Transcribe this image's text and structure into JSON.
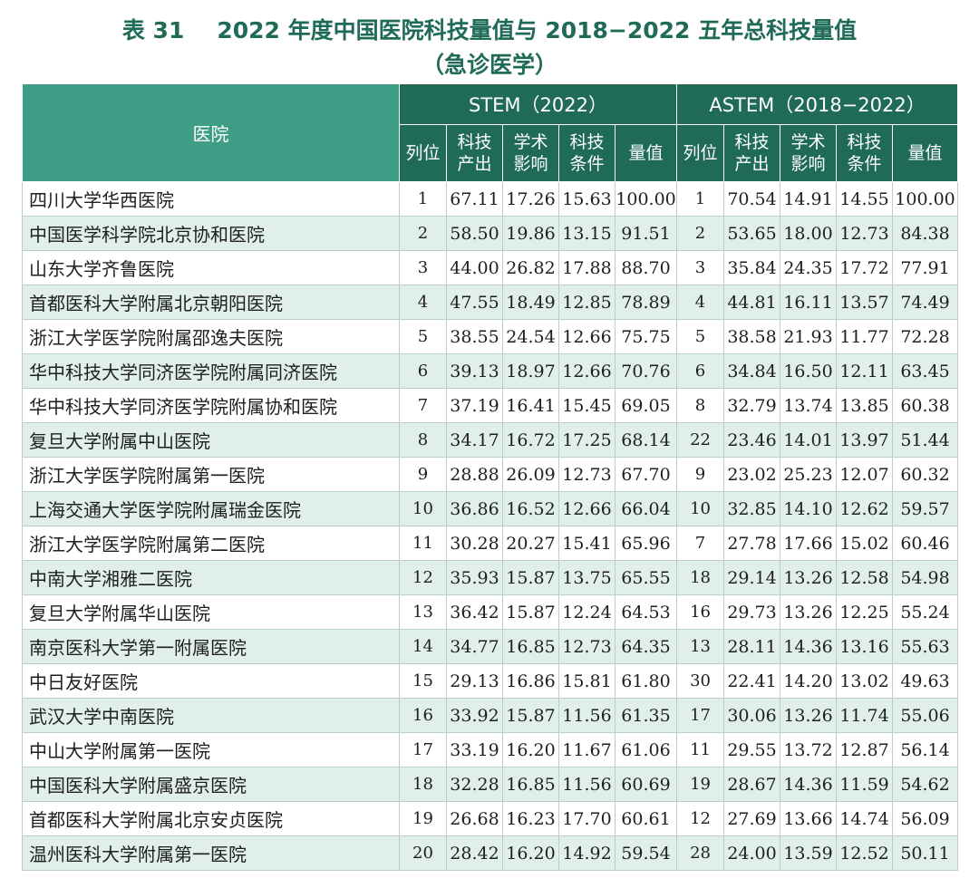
{
  "title": {
    "number": "表 31",
    "text": "2022 年度中国医院科技量值与 2018−2022 五年总科技量值",
    "subtitle": "（急诊医学）"
  },
  "table": {
    "hospital_header": "医院",
    "groups": [
      {
        "label": "STEM（2022）"
      },
      {
        "label": "ASTEM（2018−2022）"
      }
    ],
    "subheaders": [
      {
        "line1": "列位",
        "line2": ""
      },
      {
        "line1": "科技",
        "line2": "产出"
      },
      {
        "line1": "学术",
        "line2": "影响"
      },
      {
        "line1": "科技",
        "line2": "条件"
      },
      {
        "line1": "量值",
        "line2": ""
      },
      {
        "line1": "列位",
        "line2": ""
      },
      {
        "line1": "科技",
        "line2": "产出"
      },
      {
        "line1": "学术",
        "line2": "影响"
      },
      {
        "line1": "科技",
        "line2": "条件"
      },
      {
        "line1": "量值",
        "line2": ""
      }
    ],
    "rows": [
      {
        "name": "四川大学华西医院",
        "cells": [
          "1",
          "67.11",
          "17.26",
          "15.63",
          "100.00",
          "1",
          "70.54",
          "14.91",
          "14.55",
          "100.00"
        ]
      },
      {
        "name": "中国医学科学院北京协和医院",
        "cells": [
          "2",
          "58.50",
          "19.86",
          "13.15",
          "91.51",
          "2",
          "53.65",
          "18.00",
          "12.73",
          "84.38"
        ]
      },
      {
        "name": "山东大学齐鲁医院",
        "cells": [
          "3",
          "44.00",
          "26.82",
          "17.88",
          "88.70",
          "3",
          "35.84",
          "24.35",
          "17.72",
          "77.91"
        ]
      },
      {
        "name": "首都医科大学附属北京朝阳医院",
        "cells": [
          "4",
          "47.55",
          "18.49",
          "12.85",
          "78.89",
          "4",
          "44.81",
          "16.11",
          "13.57",
          "74.49"
        ]
      },
      {
        "name": "浙江大学医学院附属邵逸夫医院",
        "cells": [
          "5",
          "38.55",
          "24.54",
          "12.66",
          "75.75",
          "5",
          "38.58",
          "21.93",
          "11.77",
          "72.28"
        ]
      },
      {
        "name": "华中科技大学同济医学院附属同济医院",
        "cells": [
          "6",
          "39.13",
          "18.97",
          "12.66",
          "70.76",
          "6",
          "34.84",
          "16.50",
          "12.11",
          "63.45"
        ]
      },
      {
        "name": "华中科技大学同济医学院附属协和医院",
        "cells": [
          "7",
          "37.19",
          "16.41",
          "15.45",
          "69.05",
          "8",
          "32.79",
          "13.74",
          "13.85",
          "60.38"
        ]
      },
      {
        "name": "复旦大学附属中山医院",
        "cells": [
          "8",
          "34.17",
          "16.72",
          "17.25",
          "68.14",
          "22",
          "23.46",
          "14.01",
          "13.97",
          "51.44"
        ]
      },
      {
        "name": "浙江大学医学院附属第一医院",
        "cells": [
          "9",
          "28.88",
          "26.09",
          "12.73",
          "67.70",
          "9",
          "23.02",
          "25.23",
          "12.07",
          "60.32"
        ]
      },
      {
        "name": "上海交通大学医学院附属瑞金医院",
        "cells": [
          "10",
          "36.86",
          "16.52",
          "12.66",
          "66.04",
          "10",
          "32.85",
          "14.10",
          "12.62",
          "59.57"
        ]
      },
      {
        "name": "浙江大学医学院附属第二医院",
        "cells": [
          "11",
          "30.28",
          "20.27",
          "15.41",
          "65.96",
          "7",
          "27.78",
          "17.66",
          "15.02",
          "60.46"
        ]
      },
      {
        "name": "中南大学湘雅二医院",
        "cells": [
          "12",
          "35.93",
          "15.87",
          "13.75",
          "65.55",
          "18",
          "29.14",
          "13.26",
          "12.58",
          "54.98"
        ]
      },
      {
        "name": "复旦大学附属华山医院",
        "cells": [
          "13",
          "36.42",
          "15.87",
          "12.24",
          "64.53",
          "16",
          "29.73",
          "13.26",
          "12.25",
          "55.24"
        ]
      },
      {
        "name": "南京医科大学第一附属医院",
        "cells": [
          "14",
          "34.77",
          "16.85",
          "12.73",
          "64.35",
          "13",
          "28.11",
          "14.36",
          "13.16",
          "55.63"
        ]
      },
      {
        "name": "中日友好医院",
        "cells": [
          "15",
          "29.13",
          "16.86",
          "15.81",
          "61.80",
          "30",
          "22.41",
          "14.20",
          "13.02",
          "49.63"
        ]
      },
      {
        "name": "武汉大学中南医院",
        "cells": [
          "16",
          "33.92",
          "15.87",
          "11.56",
          "61.35",
          "17",
          "30.06",
          "13.26",
          "11.74",
          "55.06"
        ]
      },
      {
        "name": "中山大学附属第一医院",
        "cells": [
          "17",
          "33.19",
          "16.20",
          "11.67",
          "61.06",
          "11",
          "29.55",
          "13.72",
          "12.87",
          "56.14"
        ]
      },
      {
        "name": "中国医科大学附属盛京医院",
        "cells": [
          "18",
          "32.28",
          "16.85",
          "11.56",
          "60.69",
          "19",
          "28.67",
          "14.36",
          "11.59",
          "54.62"
        ]
      },
      {
        "name": "首都医科大学附属北京安贞医院",
        "cells": [
          "19",
          "26.68",
          "16.23",
          "17.70",
          "60.61",
          "12",
          "27.69",
          "13.66",
          "14.74",
          "56.09"
        ]
      },
      {
        "name": "温州医科大学附属第一医院",
        "cells": [
          "20",
          "28.42",
          "16.20",
          "14.92",
          "59.54",
          "28",
          "24.00",
          "13.59",
          "12.52",
          "50.11"
        ]
      }
    ]
  },
  "colors": {
    "header_dark": "#1f6b58",
    "header_light": "#3e9d84",
    "row_stripe": "#e1efe9",
    "title": "#1f6b58"
  }
}
